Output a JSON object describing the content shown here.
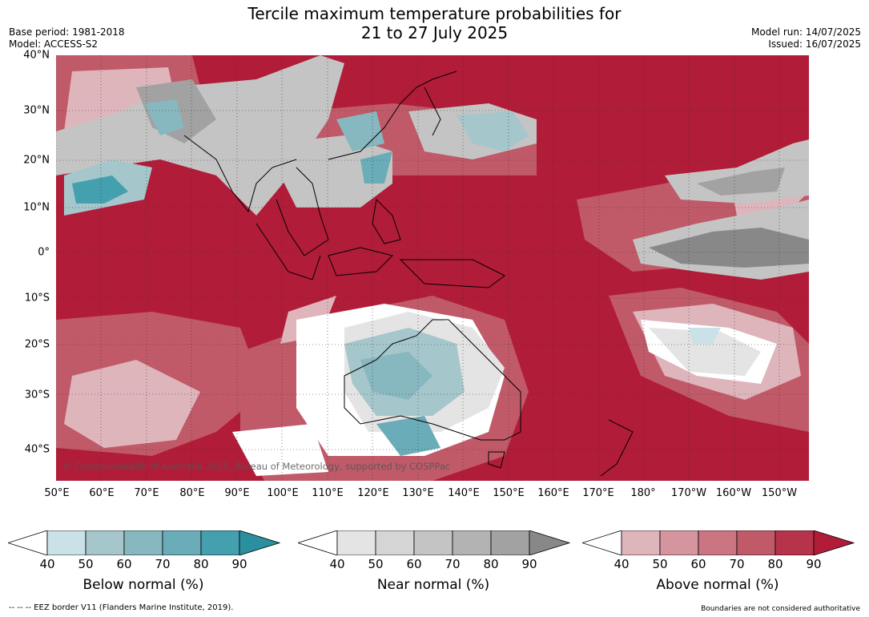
{
  "header": {
    "title_line1": "Tercile maximum temperature probabilities for",
    "title_line2": "21 to 27 July 2025",
    "base_period": "Base period: 1981-2018",
    "model": "Model: ACCESS-S2",
    "model_run": "Model run: 14/07/2025",
    "issued": "Issued: 16/07/2025"
  },
  "map": {
    "lat_labels": [
      "40°N",
      "30°N",
      "20°N",
      "10°N",
      "0°",
      "10°S",
      "20°S",
      "30°S",
      "40°S"
    ],
    "lon_labels": [
      "50°E",
      "60°E",
      "70°E",
      "80°E",
      "90°E",
      "100°E",
      "110°E",
      "120°E",
      "130°E",
      "140°E",
      "150°E",
      "160°E",
      "170°E",
      "180°",
      "170°W",
      "160°W",
      "150°W"
    ],
    "copyright": "© Commonwealth of Australia 2025, Bureau of Meteorology, supported by COSPPac"
  },
  "colorbars": [
    {
      "title": "Below normal (%)",
      "ticks": [
        "40",
        "50",
        "60",
        "70",
        "80",
        "90"
      ],
      "colors": [
        "#c9e1e7",
        "#a5c6cb",
        "#87b7bf",
        "#6aacb7",
        "#449fae",
        "#2a8f9e"
      ]
    },
    {
      "title": "Near normal (%)",
      "ticks": [
        "40",
        "50",
        "60",
        "70",
        "80",
        "90"
      ],
      "colors": [
        "#e4e4e4",
        "#d5d5d5",
        "#c4c4c4",
        "#b3b3b3",
        "#a2a2a2",
        "#888888"
      ]
    },
    {
      "title": "Above normal (%)",
      "ticks": [
        "40",
        "50",
        "60",
        "70",
        "80",
        "90"
      ],
      "colors": [
        "#dfb5bc",
        "#d5959e",
        "#ca7581",
        "#c05a68",
        "#b6334a",
        "#b11c38"
      ]
    }
  ],
  "footer": {
    "eez_note": "--  --  -- EEZ border V11 (Flanders Marine Institute, 2019).",
    "boundaries_note": "Boundaries are not considered authoritative"
  },
  "colors": {
    "above_strong": "#b11c38",
    "near_normal": "#c4c4c4",
    "below_normal": "#6aacb7"
  }
}
